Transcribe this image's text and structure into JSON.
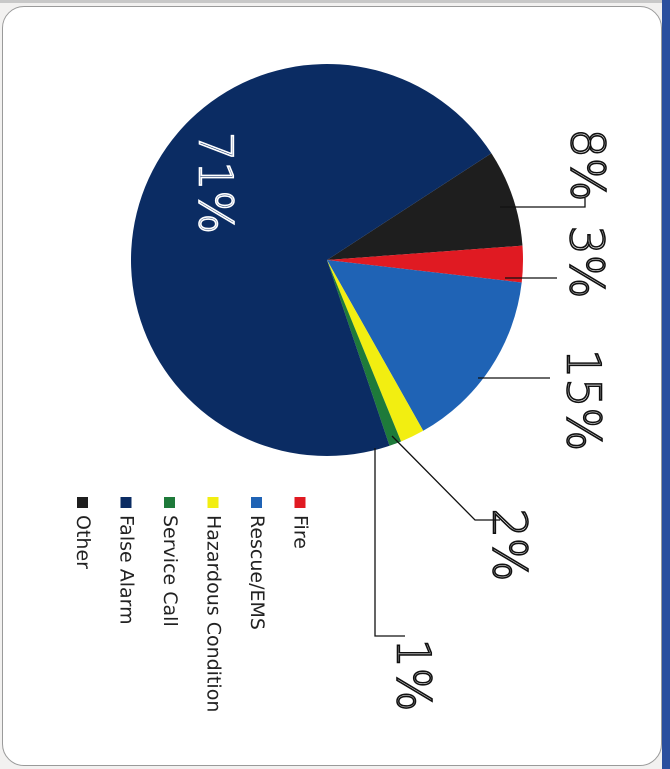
{
  "chart_data": {
    "type": "pie",
    "orientation": "rotated-90-clockwise",
    "slices": [
      {
        "label": "Other",
        "value": 8,
        "pct_label": "8%",
        "color": "#1e1e1e"
      },
      {
        "label": "Fire",
        "value": 3,
        "pct_label": "3%",
        "color": "#e01a22"
      },
      {
        "label": "Rescue/EMS",
        "value": 15,
        "pct_label": "15%",
        "color": "#1f63b5"
      },
      {
        "label": "Hazardous Condition",
        "value": 2,
        "pct_label": "2%",
        "color": "#f2ee11"
      },
      {
        "label": "Service Call",
        "value": 1,
        "pct_label": "1%",
        "color": "#1e7a3a"
      },
      {
        "label": "False Alarm",
        "value": 71,
        "pct_label": "71%",
        "color": "#0b2c63"
      }
    ],
    "legend": [
      {
        "label": "Fire",
        "color": "#e01a22"
      },
      {
        "label": "Rescue/EMS",
        "color": "#1f63b5"
      },
      {
        "label": "Hazardous Condition",
        "color": "#f2ee11"
      },
      {
        "label": "Service Call",
        "color": "#1e7a3a"
      },
      {
        "label": "False Alarm",
        "color": "#0b2c63"
      },
      {
        "label": "Other",
        "color": "#1e1e1e"
      }
    ],
    "legend_position": "bottom"
  }
}
